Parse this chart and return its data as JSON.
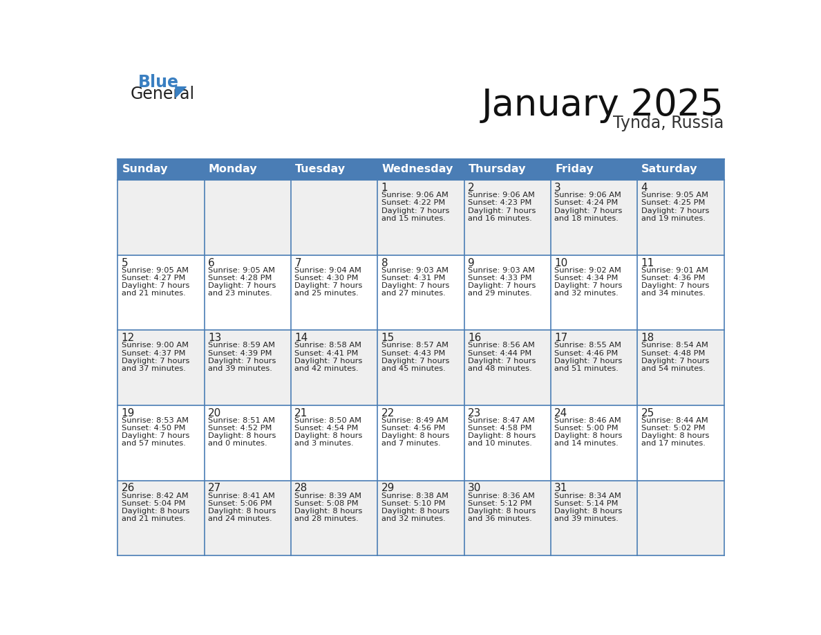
{
  "title": "January 2025",
  "subtitle": "Tynda, Russia",
  "days_of_week": [
    "Sunday",
    "Monday",
    "Tuesday",
    "Wednesday",
    "Thursday",
    "Friday",
    "Saturday"
  ],
  "header_bg": "#4A7DB5",
  "header_text": "#FFFFFF",
  "cell_bg_odd": "#EFEFEF",
  "cell_bg_even": "#FFFFFF",
  "border_color": "#4A7DB5",
  "day_number_color": "#222222",
  "text_color": "#222222",
  "title_color": "#111111",
  "subtitle_color": "#333333",
  "calendar_data": [
    [
      {
        "day": "",
        "sunrise": "",
        "sunset": "",
        "dl1": "",
        "dl2": ""
      },
      {
        "day": "",
        "sunrise": "",
        "sunset": "",
        "dl1": "",
        "dl2": ""
      },
      {
        "day": "",
        "sunrise": "",
        "sunset": "",
        "dl1": "",
        "dl2": ""
      },
      {
        "day": "1",
        "sunrise": "Sunrise: 9:06 AM",
        "sunset": "Sunset: 4:22 PM",
        "dl1": "Daylight: 7 hours",
        "dl2": "and 15 minutes."
      },
      {
        "day": "2",
        "sunrise": "Sunrise: 9:06 AM",
        "sunset": "Sunset: 4:23 PM",
        "dl1": "Daylight: 7 hours",
        "dl2": "and 16 minutes."
      },
      {
        "day": "3",
        "sunrise": "Sunrise: 9:06 AM",
        "sunset": "Sunset: 4:24 PM",
        "dl1": "Daylight: 7 hours",
        "dl2": "and 18 minutes."
      },
      {
        "day": "4",
        "sunrise": "Sunrise: 9:05 AM",
        "sunset": "Sunset: 4:25 PM",
        "dl1": "Daylight: 7 hours",
        "dl2": "and 19 minutes."
      }
    ],
    [
      {
        "day": "5",
        "sunrise": "Sunrise: 9:05 AM",
        "sunset": "Sunset: 4:27 PM",
        "dl1": "Daylight: 7 hours",
        "dl2": "and 21 minutes."
      },
      {
        "day": "6",
        "sunrise": "Sunrise: 9:05 AM",
        "sunset": "Sunset: 4:28 PM",
        "dl1": "Daylight: 7 hours",
        "dl2": "and 23 minutes."
      },
      {
        "day": "7",
        "sunrise": "Sunrise: 9:04 AM",
        "sunset": "Sunset: 4:30 PM",
        "dl1": "Daylight: 7 hours",
        "dl2": "and 25 minutes."
      },
      {
        "day": "8",
        "sunrise": "Sunrise: 9:03 AM",
        "sunset": "Sunset: 4:31 PM",
        "dl1": "Daylight: 7 hours",
        "dl2": "and 27 minutes."
      },
      {
        "day": "9",
        "sunrise": "Sunrise: 9:03 AM",
        "sunset": "Sunset: 4:33 PM",
        "dl1": "Daylight: 7 hours",
        "dl2": "and 29 minutes."
      },
      {
        "day": "10",
        "sunrise": "Sunrise: 9:02 AM",
        "sunset": "Sunset: 4:34 PM",
        "dl1": "Daylight: 7 hours",
        "dl2": "and 32 minutes."
      },
      {
        "day": "11",
        "sunrise": "Sunrise: 9:01 AM",
        "sunset": "Sunset: 4:36 PM",
        "dl1": "Daylight: 7 hours",
        "dl2": "and 34 minutes."
      }
    ],
    [
      {
        "day": "12",
        "sunrise": "Sunrise: 9:00 AM",
        "sunset": "Sunset: 4:37 PM",
        "dl1": "Daylight: 7 hours",
        "dl2": "and 37 minutes."
      },
      {
        "day": "13",
        "sunrise": "Sunrise: 8:59 AM",
        "sunset": "Sunset: 4:39 PM",
        "dl1": "Daylight: 7 hours",
        "dl2": "and 39 minutes."
      },
      {
        "day": "14",
        "sunrise": "Sunrise: 8:58 AM",
        "sunset": "Sunset: 4:41 PM",
        "dl1": "Daylight: 7 hours",
        "dl2": "and 42 minutes."
      },
      {
        "day": "15",
        "sunrise": "Sunrise: 8:57 AM",
        "sunset": "Sunset: 4:43 PM",
        "dl1": "Daylight: 7 hours",
        "dl2": "and 45 minutes."
      },
      {
        "day": "16",
        "sunrise": "Sunrise: 8:56 AM",
        "sunset": "Sunset: 4:44 PM",
        "dl1": "Daylight: 7 hours",
        "dl2": "and 48 minutes."
      },
      {
        "day": "17",
        "sunrise": "Sunrise: 8:55 AM",
        "sunset": "Sunset: 4:46 PM",
        "dl1": "Daylight: 7 hours",
        "dl2": "and 51 minutes."
      },
      {
        "day": "18",
        "sunrise": "Sunrise: 8:54 AM",
        "sunset": "Sunset: 4:48 PM",
        "dl1": "Daylight: 7 hours",
        "dl2": "and 54 minutes."
      }
    ],
    [
      {
        "day": "19",
        "sunrise": "Sunrise: 8:53 AM",
        "sunset": "Sunset: 4:50 PM",
        "dl1": "Daylight: 7 hours",
        "dl2": "and 57 minutes."
      },
      {
        "day": "20",
        "sunrise": "Sunrise: 8:51 AM",
        "sunset": "Sunset: 4:52 PM",
        "dl1": "Daylight: 8 hours",
        "dl2": "and 0 minutes."
      },
      {
        "day": "21",
        "sunrise": "Sunrise: 8:50 AM",
        "sunset": "Sunset: 4:54 PM",
        "dl1": "Daylight: 8 hours",
        "dl2": "and 3 minutes."
      },
      {
        "day": "22",
        "sunrise": "Sunrise: 8:49 AM",
        "sunset": "Sunset: 4:56 PM",
        "dl1": "Daylight: 8 hours",
        "dl2": "and 7 minutes."
      },
      {
        "day": "23",
        "sunrise": "Sunrise: 8:47 AM",
        "sunset": "Sunset: 4:58 PM",
        "dl1": "Daylight: 8 hours",
        "dl2": "and 10 minutes."
      },
      {
        "day": "24",
        "sunrise": "Sunrise: 8:46 AM",
        "sunset": "Sunset: 5:00 PM",
        "dl1": "Daylight: 8 hours",
        "dl2": "and 14 minutes."
      },
      {
        "day": "25",
        "sunrise": "Sunrise: 8:44 AM",
        "sunset": "Sunset: 5:02 PM",
        "dl1": "Daylight: 8 hours",
        "dl2": "and 17 minutes."
      }
    ],
    [
      {
        "day": "26",
        "sunrise": "Sunrise: 8:42 AM",
        "sunset": "Sunset: 5:04 PM",
        "dl1": "Daylight: 8 hours",
        "dl2": "and 21 minutes."
      },
      {
        "day": "27",
        "sunrise": "Sunrise: 8:41 AM",
        "sunset": "Sunset: 5:06 PM",
        "dl1": "Daylight: 8 hours",
        "dl2": "and 24 minutes."
      },
      {
        "day": "28",
        "sunrise": "Sunrise: 8:39 AM",
        "sunset": "Sunset: 5:08 PM",
        "dl1": "Daylight: 8 hours",
        "dl2": "and 28 minutes."
      },
      {
        "day": "29",
        "sunrise": "Sunrise: 8:38 AM",
        "sunset": "Sunset: 5:10 PM",
        "dl1": "Daylight: 8 hours",
        "dl2": "and 32 minutes."
      },
      {
        "day": "30",
        "sunrise": "Sunrise: 8:36 AM",
        "sunset": "Sunset: 5:12 PM",
        "dl1": "Daylight: 8 hours",
        "dl2": "and 36 minutes."
      },
      {
        "day": "31",
        "sunrise": "Sunrise: 8:34 AM",
        "sunset": "Sunset: 5:14 PM",
        "dl1": "Daylight: 8 hours",
        "dl2": "and 39 minutes."
      },
      {
        "day": "",
        "sunrise": "",
        "sunset": "",
        "dl1": "",
        "dl2": ""
      }
    ]
  ],
  "logo_general_color": "#222222",
  "logo_blue_color": "#3A7FC1",
  "logo_triangle_color": "#3A7FC1",
  "fig_width": 11.88,
  "fig_height": 9.18,
  "dpi": 100
}
